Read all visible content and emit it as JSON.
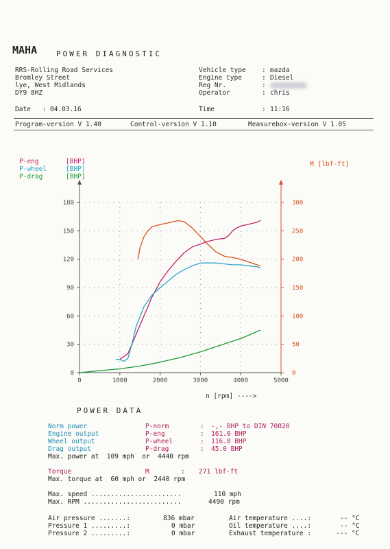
{
  "header": {
    "logo": "MAHA",
    "title": "POWER DIAGNOSTIC",
    "company_lines": [
      "RRS-Rolling Road Services",
      "Bromley Street",
      "lye, West Midlands",
      "DY9 8HZ"
    ],
    "vehicle_labels": [
      "Vehicle type",
      "Engine type",
      "Reg Nr.",
      "Operator"
    ],
    "vehicle_values": [
      "mazda",
      "Diesel",
      "",
      "chris"
    ],
    "date_label": "Date",
    "date_value": "04.03.16",
    "time_label": "Time",
    "time_value": "11:16",
    "versions": {
      "program": "Program-version V 1.40",
      "control": "Control-version V 1.10",
      "measurebox": "Measurebox-version V 1.05"
    }
  },
  "legend": {
    "p_eng": "P-eng",
    "p_wheel": "P-wheel",
    "p_drag": "P-drag",
    "unit_bhp": "[BHP]",
    "torque": "M [lbf-ft]"
  },
  "colors": {
    "p_eng": "#c0206a",
    "p_wheel": "#2aa7c9",
    "p_drag": "#1f9a3a",
    "torque": "#d8501a"
  },
  "chart_data": {
    "type": "line",
    "xlabel": "n [rpm] ---->",
    "xlim": [
      0,
      5000
    ],
    "ylim_left": [
      0,
      180
    ],
    "ylim_right": [
      0,
      300
    ],
    "x_ticks": [
      "0",
      "1000",
      "2000",
      "3000",
      "4000",
      "5000"
    ],
    "y_ticks_left": [
      "0",
      "30",
      "60",
      "90",
      "120",
      "150",
      "180"
    ],
    "y_ticks_right": [
      "0",
      "50",
      "100",
      "150",
      "200",
      "250",
      "300"
    ],
    "grid": true,
    "series": [
      {
        "name": "P-eng",
        "axis": "left",
        "points": [
          [
            1000,
            14
          ],
          [
            1200,
            20
          ],
          [
            1400,
            40
          ],
          [
            1600,
            60
          ],
          [
            1800,
            80
          ],
          [
            2000,
            96
          ],
          [
            2200,
            108
          ],
          [
            2400,
            118
          ],
          [
            2600,
            127
          ],
          [
            2800,
            133
          ],
          [
            3000,
            136
          ],
          [
            3200,
            139
          ],
          [
            3400,
            141
          ],
          [
            3600,
            142
          ],
          [
            3700,
            145
          ],
          [
            3800,
            150
          ],
          [
            3900,
            153
          ],
          [
            4000,
            155
          ],
          [
            4200,
            157
          ],
          [
            4400,
            159
          ],
          [
            4490,
            161
          ]
        ]
      },
      {
        "name": "P-wheel",
        "axis": "left",
        "points": [
          [
            900,
            14
          ],
          [
            1000,
            14
          ],
          [
            1100,
            12
          ],
          [
            1200,
            15
          ],
          [
            1300,
            30
          ],
          [
            1400,
            48
          ],
          [
            1600,
            70
          ],
          [
            1800,
            82
          ],
          [
            2000,
            90
          ],
          [
            2200,
            97
          ],
          [
            2400,
            104
          ],
          [
            2600,
            109
          ],
          [
            2800,
            113
          ],
          [
            3000,
            116
          ],
          [
            3200,
            116
          ],
          [
            3400,
            116
          ],
          [
            3600,
            115
          ],
          [
            3800,
            114
          ],
          [
            4000,
            114
          ],
          [
            4200,
            113
          ],
          [
            4400,
            112
          ],
          [
            4490,
            111
          ]
        ]
      },
      {
        "name": "P-drag",
        "axis": "left",
        "points": [
          [
            0,
            0
          ],
          [
            500,
            2
          ],
          [
            1000,
            4
          ],
          [
            1500,
            7
          ],
          [
            2000,
            11
          ],
          [
            2500,
            16
          ],
          [
            3000,
            22
          ],
          [
            3500,
            29
          ],
          [
            4000,
            36
          ],
          [
            4490,
            45
          ]
        ]
      },
      {
        "name": "M",
        "axis": "right",
        "points": [
          [
            1450,
            200
          ],
          [
            1500,
            220
          ],
          [
            1600,
            240
          ],
          [
            1700,
            250
          ],
          [
            1800,
            257
          ],
          [
            2000,
            261
          ],
          [
            2200,
            264
          ],
          [
            2440,
            268
          ],
          [
            2600,
            266
          ],
          [
            2800,
            255
          ],
          [
            3000,
            240
          ],
          [
            3200,
            225
          ],
          [
            3400,
            212
          ],
          [
            3600,
            205
          ],
          [
            3800,
            203
          ],
          [
            4000,
            200
          ],
          [
            4200,
            195
          ],
          [
            4490,
            188
          ]
        ]
      }
    ]
  },
  "power_data": {
    "title": "POWER DATA",
    "rows": [
      {
        "label": "Norm power",
        "sym": "P-norm",
        "colon": ":",
        "value": "-,- BHP to DIN 70020"
      },
      {
        "label": "Engine output",
        "sym": "P-eng",
        "colon": ":",
        "value": "161.0 BHP"
      },
      {
        "label": "Wheel output",
        "sym": "P-wheel",
        "colon": ":",
        "value": "116.0 BHP"
      },
      {
        "label": "Drag output",
        "sym": "P-drag",
        "colon": ":",
        "value": "45.0 BHP"
      }
    ],
    "max_power": "Max. power at  109 mph  or  4440 rpm",
    "torque_label": "Torque",
    "torque_sym": "M",
    "torque_value": "271 lbf-ft",
    "max_torque": "Max. torque at  60 mph or  2440 rpm",
    "max_speed_label": "Max. speed .......................",
    "max_speed_value": "110 mph",
    "max_rpm_label": "Max. RPM .........................",
    "max_rpm_value": "4490 rpm"
  },
  "ambient": {
    "air_pressure_label": "Air pressure .......:",
    "air_pressure_value": "836 mbar",
    "pressure1_label": "Pressure 1 .........:",
    "pressure1_value": "0 mbar",
    "pressure2_label": "Pressure 2 .........:",
    "pressure2_value": "0 mbar",
    "air_temp_label": "Air temperature ....:",
    "air_temp_value": "-- °C",
    "oil_temp_label": "Oil temperature ....:",
    "oil_temp_value": "-- °C",
    "exh_temp_label": "Exhaust temperature :",
    "exh_temp_value": "--- °C"
  }
}
